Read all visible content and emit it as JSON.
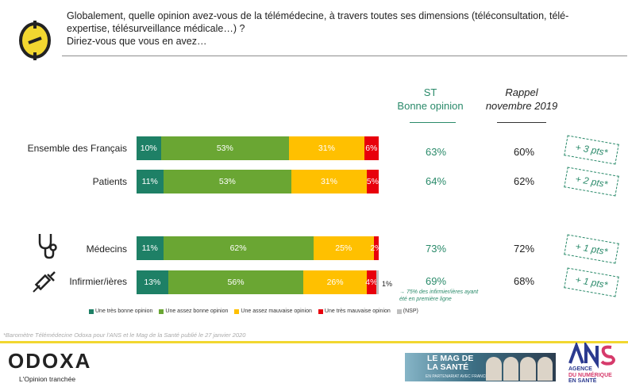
{
  "header": {
    "question_line1": "Globalement, quelle opinion avez-vous de la télémédecine, à travers toutes ses dimensions (téléconsultation, télé-",
    "question_line2": "expertise, télésurveillance médicale…) ?",
    "question_line3": "Diriez-vous que vous en avez…"
  },
  "columns": {
    "st_line1": "ST",
    "st_line2": "Bonne opinion",
    "rappel_line1": "Rappel",
    "rappel_line2": "novembre 2019"
  },
  "colors": {
    "tres_bonne": "#1e8066",
    "assez_bonne": "#6aa633",
    "assez_mauvaise": "#ffc000",
    "tres_mauvaise": "#e8000c",
    "nsp": "#bfbfbf",
    "accent_green": "#2a8a6a",
    "accent_yellow": "#f2d730"
  },
  "chart_data": {
    "type": "bar",
    "orientation": "horizontal",
    "stacked": true,
    "title": "Globalement, quelle opinion avez-vous de la télémédecine ?",
    "categories": [
      "Ensemble des Français",
      "Patients",
      "Médecins",
      "Infirmier/ières"
    ],
    "series": [
      {
        "name": "Une très bonne opinion",
        "values": [
          10,
          11,
          11,
          13
        ],
        "labels": [
          "10%",
          "11%",
          "11%",
          "13%"
        ]
      },
      {
        "name": "Une assez bonne opinion",
        "values": [
          53,
          53,
          62,
          56
        ],
        "labels": [
          "53%",
          "53%",
          "62%",
          "56%"
        ]
      },
      {
        "name": "Une assez mauvaise opinion",
        "values": [
          31,
          31,
          25,
          26
        ],
        "labels": [
          "31%",
          "31%",
          "25%",
          "26%"
        ]
      },
      {
        "name": "Une très mauvaise opinion",
        "values": [
          6,
          5,
          2,
          4
        ],
        "labels": [
          "6%",
          "5%",
          "2%",
          "4%"
        ]
      },
      {
        "name": "(NSP)",
        "values": [
          0,
          0,
          0,
          1
        ],
        "labels": [
          "",
          "",
          "",
          "1%"
        ]
      }
    ],
    "st_bonne_opinion": [
      "63%",
      "64%",
      "73%",
      "69%"
    ],
    "rappel_novembre_2019": [
      "60%",
      "62%",
      "72%",
      "68%"
    ],
    "evolution": [
      "+ 3 pts*",
      "+ 2 pts*",
      "+ 1 pts*",
      "+ 1 pts*"
    ],
    "xlim": [
      0,
      100
    ]
  },
  "notes": {
    "nsp_value": "1%",
    "infirmier_note": "→ 75% des infirmier/ières ayant été en première ligne",
    "source": "*Baromètre Télémédecine Odoxa pour l'ANS et le Mag de la Santé publié le 27 janvier 2020"
  },
  "footer": {
    "odoxa_brand": "ODOXA",
    "odoxa_tagline": "L'Opinion tranchée",
    "mag_title": "LE MAG DE LA SANTÉ",
    "mag_subtitle": "EN PARTENARIAT AVEC FRANCE 5",
    "ans_line1": "AGENCE",
    "ans_line2": "DU NUMÉRIQUE",
    "ans_line3": "EN SANTÉ"
  }
}
